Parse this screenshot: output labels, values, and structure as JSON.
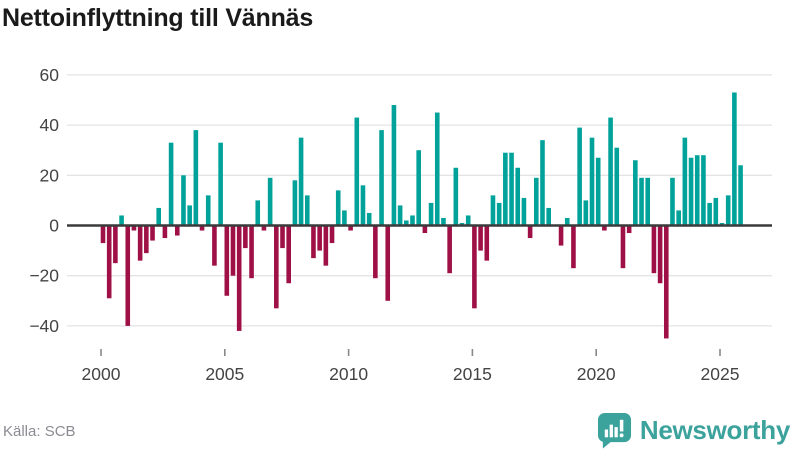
{
  "header": {
    "title": "Nettoinflyttning till Vännäs"
  },
  "footer": {
    "source_label": "Källa: SCB",
    "logo": {
      "text": "Newsworthy",
      "icon": "bar-chart-speech-bubble-icon",
      "color": "#3ba29c"
    }
  },
  "chart_data": {
    "type": "bar",
    "title": "Nettoinflyttning till Vännäs",
    "xlabel": "",
    "ylabel": "",
    "period": "quarterly",
    "start_year": 2000,
    "values": [
      -7,
      -29,
      -15,
      4,
      -40,
      -2,
      -14,
      -11,
      -6,
      7,
      -5,
      33,
      -4,
      20,
      8,
      38,
      -2,
      12,
      -16,
      33,
      -28,
      -20,
      -42,
      -9,
      -21,
      10,
      -2,
      19,
      -33,
      -9,
      -23,
      18,
      35,
      12,
      -13,
      -10,
      -16,
      -7,
      14,
      6,
      -2,
      43,
      16,
      5,
      -21,
      38,
      -30,
      48,
      8,
      2,
      4,
      30,
      -3,
      9,
      45,
      3,
      -19,
      23,
      1,
      4,
      -33,
      -10,
      -14,
      12,
      9,
      29,
      29,
      23,
      11,
      -5,
      19,
      34,
      7,
      0,
      -8,
      3,
      -17,
      39,
      10,
      35,
      27,
      -2,
      43,
      31,
      -17,
      -3,
      26,
      19,
      19,
      -19,
      -23,
      -45,
      19,
      6,
      35,
      27,
      28,
      28,
      9,
      11,
      1,
      12,
      53,
      24
    ],
    "y_ticks": [
      60,
      40,
      20,
      0,
      -20,
      -40
    ],
    "y_tick_labels": [
      "60",
      "40",
      "20",
      "0",
      "−20",
      "−40"
    ],
    "x_ticks": [
      2000,
      2005,
      2010,
      2015,
      2020,
      2025
    ],
    "x_tick_labels": [
      "2000",
      "2005",
      "2010",
      "2015",
      "2020",
      "2025"
    ],
    "ylim": [
      -48,
      62
    ],
    "grid": true,
    "legend": "none",
    "colors": {
      "positive": "#00a29a",
      "negative": "#9f1146",
      "zero_line": "#3a3a3a",
      "gridline": "#e4e4e4",
      "axis_text": "#444444"
    }
  }
}
